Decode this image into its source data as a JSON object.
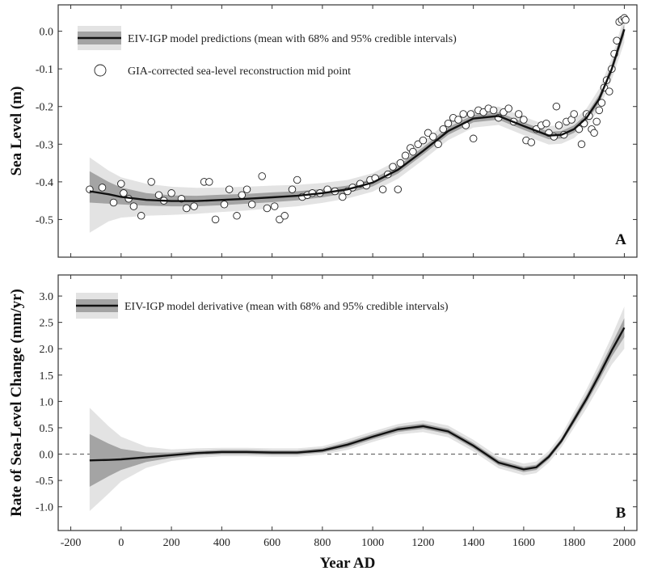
{
  "chart_data": [
    {
      "panel": "A",
      "type": "line",
      "ylabel": "Sea Level (m)",
      "xlim": [
        -250,
        2050
      ],
      "ylim": [
        -0.6,
        0.07
      ],
      "yticks": [
        0.0,
        -0.1,
        -0.2,
        -0.3,
        -0.4,
        -0.5
      ],
      "ytick_labels": [
        "0.0",
        "-0.1",
        "-0.2",
        "-0.3",
        "-0.4",
        "-0.5"
      ],
      "legend": {
        "position": "top-left",
        "entries": [
          "EIV-IGP model predictions (mean with 68% and 95% credible intervals)",
          "GIA-corrected sea-level reconstruction mid point"
        ]
      },
      "series": [
        {
          "name": "EIV-IGP model predictions (mean with 68% and 95% credible intervals)",
          "x": [
            -125,
            -50,
            0,
            100,
            200,
            300,
            400,
            500,
            600,
            700,
            800,
            900,
            1000,
            1100,
            1200,
            1300,
            1400,
            1500,
            1600,
            1700,
            1750,
            1800,
            1850,
            1900,
            1950,
            2000
          ],
          "mean": [
            -0.425,
            -0.433,
            -0.44,
            -0.448,
            -0.451,
            -0.451,
            -0.448,
            -0.445,
            -0.441,
            -0.437,
            -0.43,
            -0.42,
            -0.402,
            -0.368,
            -0.318,
            -0.265,
            -0.232,
            -0.225,
            -0.252,
            -0.277,
            -0.275,
            -0.26,
            -0.23,
            -0.18,
            -0.1,
            0.005
          ],
          "lo68": [
            -0.455,
            -0.458,
            -0.46,
            -0.463,
            -0.465,
            -0.465,
            -0.462,
            -0.458,
            -0.454,
            -0.449,
            -0.441,
            -0.43,
            -0.412,
            -0.378,
            -0.328,
            -0.275,
            -0.242,
            -0.235,
            -0.262,
            -0.287,
            -0.285,
            -0.27,
            -0.24,
            -0.191,
            -0.112,
            -0.01
          ],
          "hi68": [
            -0.372,
            -0.4,
            -0.415,
            -0.43,
            -0.436,
            -0.437,
            -0.434,
            -0.432,
            -0.428,
            -0.425,
            -0.419,
            -0.41,
            -0.392,
            -0.358,
            -0.308,
            -0.255,
            -0.222,
            -0.215,
            -0.242,
            -0.267,
            -0.265,
            -0.25,
            -0.22,
            -0.169,
            -0.088,
            0.02
          ],
          "lo95": [
            -0.535,
            -0.505,
            -0.495,
            -0.49,
            -0.488,
            -0.485,
            -0.48,
            -0.476,
            -0.47,
            -0.465,
            -0.456,
            -0.444,
            -0.426,
            -0.392,
            -0.342,
            -0.289,
            -0.256,
            -0.249,
            -0.276,
            -0.301,
            -0.299,
            -0.284,
            -0.254,
            -0.206,
            -0.128,
            -0.03
          ],
          "hi95": [
            -0.335,
            -0.37,
            -0.388,
            -0.405,
            -0.413,
            -0.416,
            -0.415,
            -0.413,
            -0.41,
            -0.408,
            -0.403,
            -0.395,
            -0.377,
            -0.343,
            -0.293,
            -0.24,
            -0.207,
            -0.2,
            -0.227,
            -0.252,
            -0.25,
            -0.235,
            -0.205,
            -0.153,
            -0.072,
            0.04
          ]
        },
        {
          "name": "GIA-corrected sea-level reconstruction mid point",
          "type": "scatter",
          "points": [
            [
              -125,
              -0.42
            ],
            [
              -75,
              -0.415
            ],
            [
              -30,
              -0.455
            ],
            [
              0,
              -0.405
            ],
            [
              10,
              -0.43
            ],
            [
              30,
              -0.445
            ],
            [
              50,
              -0.465
            ],
            [
              80,
              -0.49
            ],
            [
              120,
              -0.4
            ],
            [
              150,
              -0.435
            ],
            [
              170,
              -0.45
            ],
            [
              200,
              -0.43
            ],
            [
              240,
              -0.445
            ],
            [
              260,
              -0.47
            ],
            [
              290,
              -0.465
            ],
            [
              330,
              -0.4
            ],
            [
              350,
              -0.4
            ],
            [
              375,
              -0.5
            ],
            [
              410,
              -0.46
            ],
            [
              430,
              -0.42
            ],
            [
              460,
              -0.49
            ],
            [
              480,
              -0.435
            ],
            [
              500,
              -0.42
            ],
            [
              520,
              -0.46
            ],
            [
              560,
              -0.385
            ],
            [
              580,
              -0.47
            ],
            [
              610,
              -0.465
            ],
            [
              630,
              -0.5
            ],
            [
              650,
              -0.49
            ],
            [
              680,
              -0.42
            ],
            [
              700,
              -0.395
            ],
            [
              720,
              -0.44
            ],
            [
              740,
              -0.435
            ],
            [
              760,
              -0.43
            ],
            [
              790,
              -0.43
            ],
            [
              820,
              -0.42
            ],
            [
              850,
              -0.425
            ],
            [
              880,
              -0.44
            ],
            [
              900,
              -0.425
            ],
            [
              920,
              -0.415
            ],
            [
              950,
              -0.405
            ],
            [
              975,
              -0.41
            ],
            [
              990,
              -0.395
            ],
            [
              1010,
              -0.39
            ],
            [
              1040,
              -0.42
            ],
            [
              1060,
              -0.38
            ],
            [
              1080,
              -0.36
            ],
            [
              1100,
              -0.42
            ],
            [
              1110,
              -0.35
            ],
            [
              1130,
              -0.33
            ],
            [
              1150,
              -0.31
            ],
            [
              1160,
              -0.32
            ],
            [
              1180,
              -0.3
            ],
            [
              1200,
              -0.29
            ],
            [
              1220,
              -0.27
            ],
            [
              1240,
              -0.28
            ],
            [
              1260,
              -0.3
            ],
            [
              1280,
              -0.26
            ],
            [
              1300,
              -0.245
            ],
            [
              1320,
              -0.23
            ],
            [
              1340,
              -0.235
            ],
            [
              1360,
              -0.22
            ],
            [
              1370,
              -0.25
            ],
            [
              1390,
              -0.22
            ],
            [
              1400,
              -0.285
            ],
            [
              1420,
              -0.21
            ],
            [
              1440,
              -0.215
            ],
            [
              1460,
              -0.205
            ],
            [
              1480,
              -0.21
            ],
            [
              1500,
              -0.23
            ],
            [
              1520,
              -0.215
            ],
            [
              1540,
              -0.205
            ],
            [
              1560,
              -0.24
            ],
            [
              1580,
              -0.22
            ],
            [
              1600,
              -0.235
            ],
            [
              1610,
              -0.29
            ],
            [
              1630,
              -0.295
            ],
            [
              1650,
              -0.26
            ],
            [
              1670,
              -0.25
            ],
            [
              1690,
              -0.245
            ],
            [
              1700,
              -0.27
            ],
            [
              1720,
              -0.28
            ],
            [
              1730,
              -0.2
            ],
            [
              1740,
              -0.25
            ],
            [
              1760,
              -0.275
            ],
            [
              1770,
              -0.24
            ],
            [
              1790,
              -0.235
            ],
            [
              1800,
              -0.22
            ],
            [
              1820,
              -0.26
            ],
            [
              1830,
              -0.3
            ],
            [
              1840,
              -0.245
            ],
            [
              1850,
              -0.22
            ],
            [
              1860,
              -0.225
            ],
            [
              1870,
              -0.26
            ],
            [
              1880,
              -0.27
            ],
            [
              1890,
              -0.24
            ],
            [
              1900,
              -0.21
            ],
            [
              1910,
              -0.19
            ],
            [
              1920,
              -0.15
            ],
            [
              1930,
              -0.13
            ],
            [
              1940,
              -0.16
            ],
            [
              1950,
              -0.1
            ],
            [
              1960,
              -0.06
            ],
            [
              1970,
              -0.025
            ],
            [
              1980,
              0.025
            ],
            [
              1990,
              0.03
            ],
            [
              2000,
              0.035
            ],
            [
              2005,
              0.03
            ]
          ]
        }
      ],
      "panel_label": "A"
    },
    {
      "panel": "B",
      "type": "line",
      "xlabel": "Year AD",
      "ylabel": "Rate of Sea-Level Change (mm/yr)",
      "xlim": [
        -250,
        2050
      ],
      "ylim": [
        -1.45,
        3.4
      ],
      "xticks": [
        -200,
        0,
        200,
        400,
        600,
        800,
        1000,
        1200,
        1400,
        1600,
        1800,
        2000
      ],
      "xtick_labels": [
        "-200",
        "0",
        "200",
        "400",
        "600",
        "800",
        "1000",
        "1200",
        "1400",
        "1600",
        "1800",
        "2000"
      ],
      "yticks": [
        3.0,
        2.5,
        2.0,
        1.5,
        1.0,
        0.5,
        0.0,
        -0.5,
        -1.0
      ],
      "ytick_labels": [
        "3.0",
        "2.5",
        "2.0",
        "1.5",
        "1.0",
        "0.5",
        "0.0",
        "-0.5",
        "-1.0"
      ],
      "zero_line": 0.0,
      "legend": {
        "position": "top-left",
        "entries": [
          "EIV-IGP model derivative (mean with 68% and 95% credible intervals)"
        ]
      },
      "series": [
        {
          "name": "EIV-IGP model derivative (mean with 68% and 95% credible intervals)",
          "x": [
            -125,
            -50,
            0,
            100,
            200,
            300,
            400,
            500,
            600,
            700,
            800,
            900,
            1000,
            1100,
            1200,
            1300,
            1400,
            1500,
            1600,
            1650,
            1700,
            1750,
            1800,
            1850,
            1900,
            1950,
            2000
          ],
          "mean": [
            -0.12,
            -0.11,
            -0.1,
            -0.06,
            -0.02,
            0.02,
            0.04,
            0.04,
            0.03,
            0.03,
            0.07,
            0.18,
            0.33,
            0.47,
            0.53,
            0.43,
            0.16,
            -0.16,
            -0.29,
            -0.25,
            -0.05,
            0.25,
            0.65,
            1.05,
            1.5,
            1.97,
            2.4
          ],
          "lo68": [
            -0.62,
            -0.42,
            -0.3,
            -0.15,
            -0.07,
            -0.02,
            0.0,
            0.0,
            -0.01,
            -0.01,
            0.03,
            0.13,
            0.28,
            0.42,
            0.48,
            0.38,
            0.11,
            -0.21,
            -0.34,
            -0.3,
            -0.1,
            0.2,
            0.58,
            0.97,
            1.4,
            1.85,
            2.22
          ],
          "hi68": [
            0.38,
            0.2,
            0.1,
            0.03,
            0.03,
            0.06,
            0.08,
            0.08,
            0.07,
            0.07,
            0.11,
            0.23,
            0.38,
            0.52,
            0.58,
            0.48,
            0.21,
            -0.11,
            -0.24,
            -0.2,
            0.0,
            0.3,
            0.72,
            1.13,
            1.6,
            2.09,
            2.58
          ],
          "lo95": [
            -1.08,
            -0.75,
            -0.52,
            -0.26,
            -0.13,
            -0.07,
            -0.04,
            -0.04,
            -0.05,
            -0.05,
            -0.01,
            0.08,
            0.23,
            0.37,
            0.42,
            0.32,
            0.05,
            -0.27,
            -0.4,
            -0.36,
            -0.16,
            0.13,
            0.5,
            0.87,
            1.28,
            1.7,
            2.0
          ],
          "hi95": [
            0.88,
            0.53,
            0.33,
            0.14,
            0.09,
            0.11,
            0.12,
            0.12,
            0.11,
            0.11,
            0.15,
            0.28,
            0.43,
            0.57,
            0.64,
            0.54,
            0.27,
            -0.05,
            -0.18,
            -0.14,
            0.06,
            0.37,
            0.8,
            1.23,
            1.72,
            2.24,
            2.8
          ]
        }
      ],
      "panel_label": "B"
    }
  ]
}
